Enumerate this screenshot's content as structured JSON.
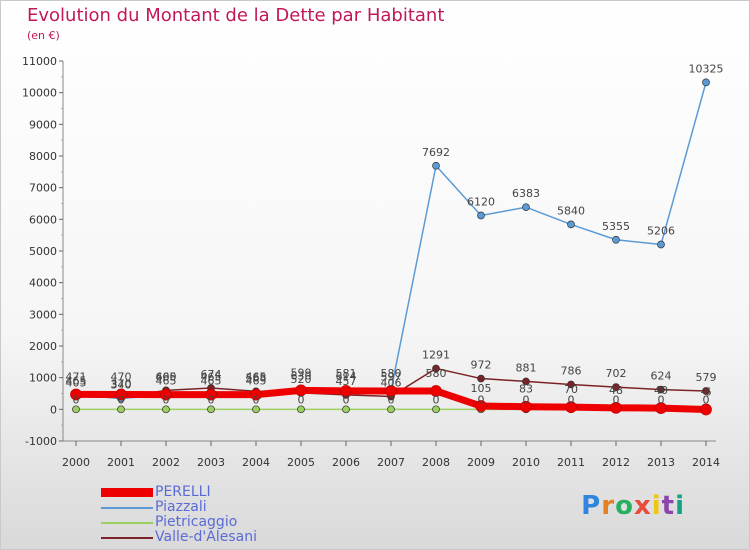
{
  "header": {
    "title": "Evolution du Montant de la Dette par Habitant",
    "subtitle": "(en €)"
  },
  "logo": {
    "letters": [
      "P",
      "r",
      "o",
      "x",
      "i",
      "t",
      "i"
    ],
    "colors": [
      "#2e86de",
      "#e67e22",
      "#27ae60",
      "#e74c3c",
      "#f1c40f",
      "#8e44ad",
      "#16a085"
    ]
  },
  "chart_data": {
    "type": "line",
    "x": [
      2000,
      2001,
      2002,
      2003,
      2004,
      2005,
      2006,
      2007,
      2008,
      2009,
      2010,
      2011,
      2012,
      2013,
      2014
    ],
    "ylim": [
      -1000,
      11000
    ],
    "yticks": [
      -1000,
      0,
      1000,
      2000,
      3000,
      4000,
      5000,
      6000,
      7000,
      8000,
      9000,
      10000,
      11000
    ],
    "grid": false,
    "legend": "bottom-left",
    "series": [
      {
        "name": "PERELLI",
        "color": "#ee0000",
        "values": [
          471,
          470,
          465,
          465,
          465,
          599,
          581,
          580,
          580,
          105,
          83,
          70,
          48,
          40,
          -6
        ],
        "labels": [
          "471",
          "470",
          "465",
          "465",
          "465",
          "599",
          "581",
          "580",
          "580",
          "105",
          "83",
          "70",
          "48",
          "40",
          "-6"
        ]
      },
      {
        "name": "Piazzali",
        "color": "#5b9bd5",
        "values": [
          465,
          340,
          465,
          465,
          465,
          630,
          614,
          597,
          7692,
          6120,
          6383,
          5840,
          5355,
          5206,
          10325
        ],
        "labels": [
          "465",
          "340",
          "465",
          "465",
          "465",
          "630",
          "614",
          "597",
          "7692",
          "6120",
          "6383",
          "5840",
          "5355",
          "5206",
          "10325"
        ]
      },
      {
        "name": "Pietricaggio",
        "color": "#99d060",
        "values": [
          0,
          0,
          0,
          0,
          0,
          0,
          0,
          0,
          0,
          0,
          0,
          0,
          0,
          0,
          0
        ],
        "labels": [
          "0",
          "0",
          "0",
          "0",
          "0",
          "0",
          "0",
          "0",
          "0",
          "0",
          "0",
          "0",
          "0",
          "0",
          "0"
        ]
      },
      {
        "name": "Valle-d'Alesani",
        "color": "#7b2226",
        "values": [
          405,
          370,
          600,
          674,
          568,
          520,
          457,
          406,
          1291,
          972,
          881,
          786,
          702,
          624,
          579
        ],
        "labels": [
          "405",
          "370",
          "600",
          "674",
          "568",
          "520",
          "457",
          "406",
          "1291",
          "972",
          "881",
          "786",
          "702",
          "624",
          "579"
        ]
      }
    ]
  }
}
